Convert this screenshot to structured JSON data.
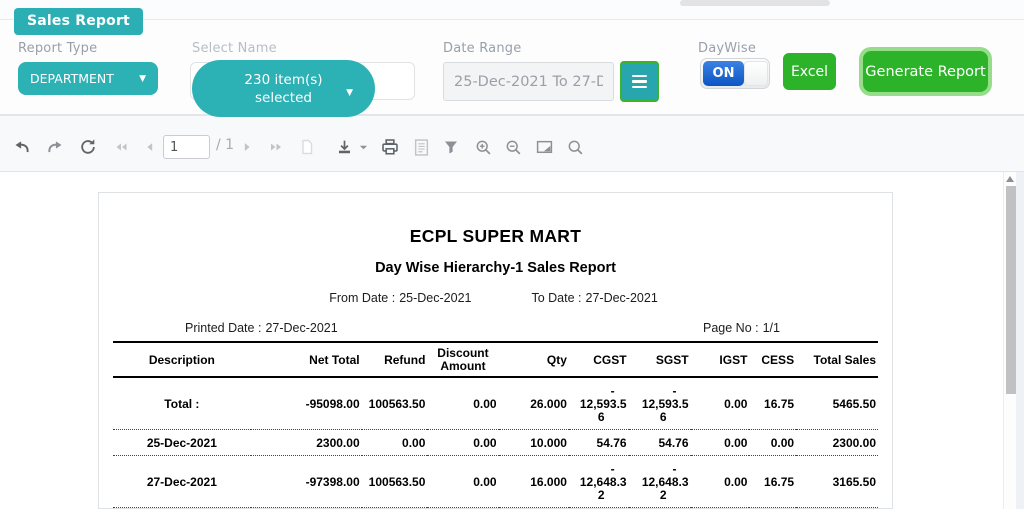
{
  "page": {
    "tab_title": "Sales Report"
  },
  "colors": {
    "teal": "#2cb1b5",
    "green": "#2db329",
    "toggle_blue": "#0b55c4",
    "label_gray": "#98a0a9"
  },
  "filters": {
    "report_type": {
      "label": "Report Type",
      "value": "DEPARTMENT"
    },
    "select_name": {
      "label": "Select Name",
      "line1": "230 item(s)",
      "line2": "selected"
    },
    "date_range": {
      "label": "Date Range",
      "value": "25-Dec-2021 To 27-D"
    },
    "daywise": {
      "label": "DayWise",
      "state": "ON"
    },
    "excel_label": "Excel",
    "generate_label": "Generate Report"
  },
  "toolbar": {
    "page_value": "1",
    "page_total": "/ 1",
    "icons": [
      "undo-icon",
      "redo-icon",
      "refresh-icon",
      "first-page-icon",
      "prev-page-icon",
      "next-page-icon",
      "last-page-icon",
      "new-page-icon",
      "download-icon",
      "caret-down-icon",
      "print-icon",
      "document-icon",
      "filter-icon",
      "zoom-in-icon",
      "zoom-out-icon",
      "fit-screen-icon",
      "search-icon"
    ]
  },
  "report": {
    "company": "ECPL SUPER MART",
    "title": "Day Wise Hierarchy-1 Sales Report",
    "from_date_label": "From Date :",
    "from_date": "25-Dec-2021",
    "to_date_label": "To Date :",
    "to_date": "27-Dec-2021",
    "printed_label": "Printed Date :",
    "printed_date": "27-Dec-2021",
    "page_no_label": "Page No :",
    "page_no": "1/1",
    "table": {
      "columns": [
        "Description",
        "Net Total",
        "Refund",
        "Discount Amount",
        "Qty",
        "CGST",
        "SGST",
        "IGST",
        "CESS",
        "Total Sales"
      ],
      "rows": [
        {
          "cells": [
            [
              "Total :"
            ],
            [
              "-95098.00"
            ],
            [
              "100563.50"
            ],
            [
              "0.00"
            ],
            [
              "26.000"
            ],
            [
              "-",
              "12,593.5",
              "6"
            ],
            [
              "-",
              "12,593.5",
              "6"
            ],
            [
              "0.00"
            ],
            [
              "16.75"
            ],
            [
              "5465.50"
            ]
          ]
        },
        {
          "cells": [
            [
              "25-Dec-2021"
            ],
            [
              "2300.00"
            ],
            [
              "0.00"
            ],
            [
              "0.00"
            ],
            [
              "10.000"
            ],
            [
              "54.76"
            ],
            [
              "54.76"
            ],
            [
              "0.00"
            ],
            [
              "0.00"
            ],
            [
              "2300.00"
            ]
          ]
        },
        {
          "cells": [
            [
              "27-Dec-2021"
            ],
            [
              "-97398.00"
            ],
            [
              "100563.50"
            ],
            [
              "0.00"
            ],
            [
              "16.000"
            ],
            [
              "-",
              "12,648.3",
              "2"
            ],
            [
              "-",
              "12,648.3",
              "2"
            ],
            [
              "0.00"
            ],
            [
              "16.75"
            ],
            [
              "3165.50"
            ]
          ]
        }
      ]
    }
  }
}
